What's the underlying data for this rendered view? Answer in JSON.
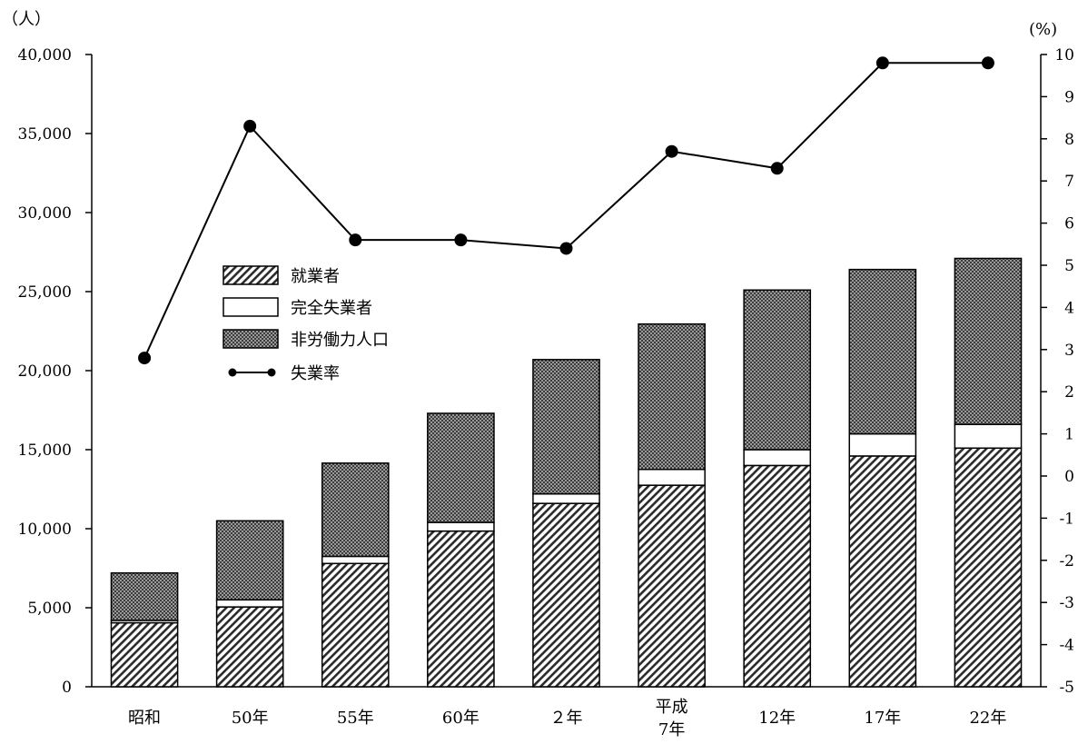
{
  "chart_data": {
    "type": "bar",
    "stacked": true,
    "categories": [
      "昭和",
      "50年",
      "55年",
      "60年",
      "２年",
      "平成\n7年",
      "12年",
      "17年",
      "22年"
    ],
    "series": [
      {
        "name": "就業者",
        "kind": "bar",
        "axis": "left",
        "pattern": "diagonal-hatch",
        "values": [
          4050,
          5050,
          7800,
          9850,
          11600,
          12750,
          14000,
          14600,
          15100
        ]
      },
      {
        "name": "完全失業者",
        "kind": "bar",
        "axis": "left",
        "pattern": "white",
        "values": [
          150,
          450,
          450,
          550,
          600,
          1000,
          1000,
          1400,
          1500
        ]
      },
      {
        "name": "非労働力人口",
        "kind": "bar",
        "axis": "left",
        "pattern": "dark-crosshatch",
        "values": [
          3000,
          5000,
          5900,
          6900,
          8500,
          9200,
          10100,
          10400,
          10500
        ]
      },
      {
        "name": "失業率",
        "kind": "line",
        "axis": "right",
        "marker": "filled-circle",
        "values": [
          2.8,
          8.3,
          5.6,
          5.6,
          5.4,
          7.7,
          7.3,
          9.8,
          9.8
        ]
      }
    ],
    "left_axis": {
      "unit": "（人）",
      "ylim": [
        0,
        40000
      ],
      "ticks": [
        "0",
        "5,000",
        "10,000",
        "15,000",
        "20,000",
        "25,000",
        "30,000",
        "35,000",
        "40,000"
      ]
    },
    "right_axis": {
      "unit": "(%)",
      "ylim": [
        -5,
        10
      ],
      "ticks": [
        "-5",
        "-4",
        "-3",
        "-2",
        "-1",
        "0",
        "1",
        "2",
        "3",
        "4",
        "5",
        "6",
        "7",
        "8",
        "9",
        "10"
      ]
    },
    "grid": false,
    "legend_position": "upper-left-center"
  }
}
